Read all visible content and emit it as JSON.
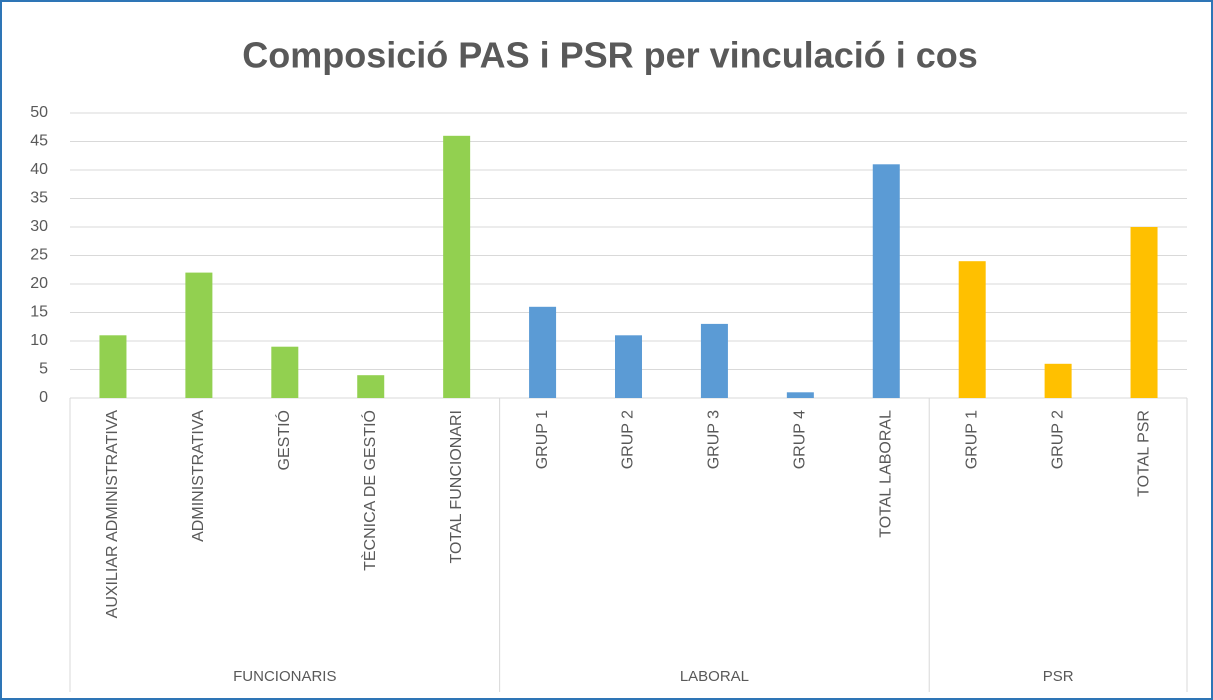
{
  "chart_data": {
    "type": "bar",
    "title": "Composició PAS i PSR per vinculació i cos",
    "groups": [
      {
        "name": "FUNCIONARIS",
        "color": "#92d050",
        "categories": [
          "AUXILIAR ADMINISTRATIVA",
          "ADMINISTRATIVA",
          "GESTIÓ",
          "TÈCNICA DE GESTIÓ",
          "TOTAL FUNCIONARI"
        ],
        "values": [
          11,
          22,
          9,
          4,
          46
        ]
      },
      {
        "name": "LABORAL",
        "color": "#5b9bd5",
        "categories": [
          "GRUP 1",
          "GRUP 2",
          "GRUP 3",
          "GRUP 4",
          "TOTAL LABORAL"
        ],
        "values": [
          16,
          11,
          13,
          1,
          41
        ]
      },
      {
        "name": "PSR",
        "color": "#ffc000",
        "categories": [
          "GRUP 1",
          "GRUP 2",
          "TOTAL PSR"
        ],
        "values": [
          24,
          6,
          30
        ]
      }
    ],
    "ylim": [
      0,
      50
    ],
    "yticks": [
      0,
      5,
      10,
      15,
      20,
      25,
      30,
      35,
      40,
      45,
      50
    ],
    "grid": true
  }
}
